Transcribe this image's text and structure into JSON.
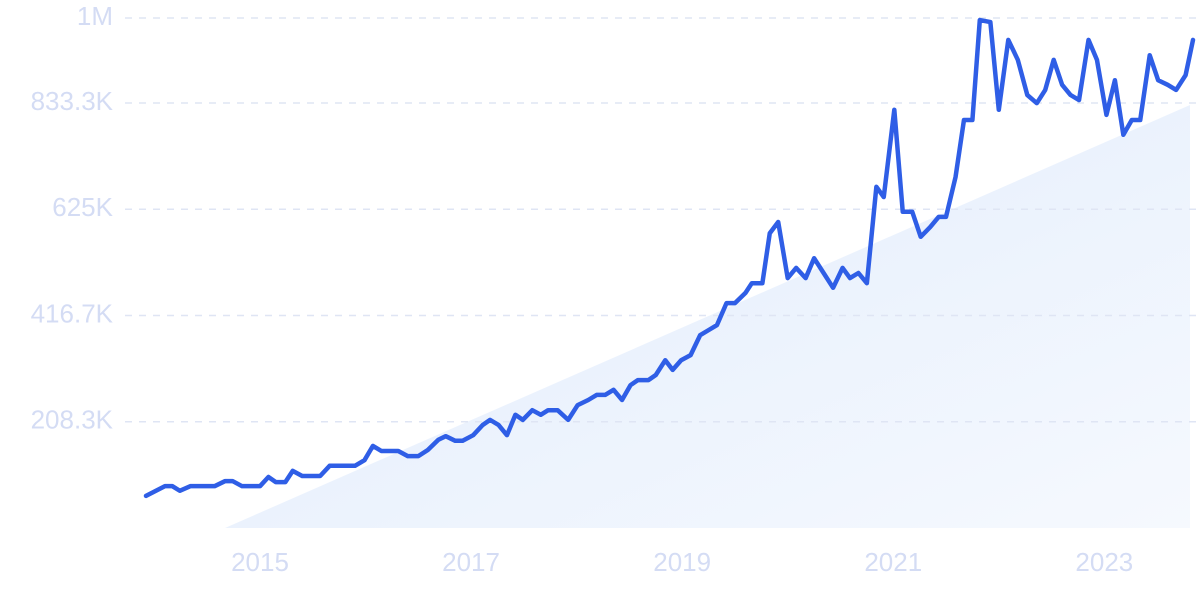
{
  "chart_data": {
    "type": "line",
    "x": [
      2013.92,
      2014.1,
      2014.17,
      2014.24,
      2014.34,
      2014.57,
      2014.67,
      2014.74,
      2014.83,
      2015.0,
      2015.08,
      2015.15,
      2015.24,
      2015.31,
      2015.4,
      2015.57,
      2015.66,
      2015.9,
      2015.99,
      2016.07,
      2016.15,
      2016.31,
      2016.4,
      2016.5,
      2016.59,
      2016.69,
      2016.76,
      2016.85,
      2016.92,
      2017.02,
      2017.11,
      2017.18,
      2017.26,
      2017.34,
      2017.42,
      2017.49,
      2017.58,
      2017.66,
      2017.73,
      2017.82,
      2017.92,
      2018.01,
      2018.11,
      2018.19,
      2018.27,
      2018.35,
      2018.43,
      2018.51,
      2018.58,
      2018.68,
      2018.75,
      2018.84,
      2018.91,
      2018.99,
      2019.08,
      2019.17,
      2019.25,
      2019.33,
      2019.42,
      2019.5,
      2019.6,
      2019.66,
      2019.76,
      2019.83,
      2019.91,
      2020.0,
      2020.08,
      2020.17,
      2020.25,
      2020.34,
      2020.43,
      2020.52,
      2020.59,
      2020.67,
      2020.75,
      2020.84,
      2020.91,
      2021.01,
      2021.09,
      2021.18,
      2021.26,
      2021.35,
      2021.43,
      2021.5,
      2021.59,
      2021.67,
      2021.75,
      2021.82,
      2021.92,
      2022.0,
      2022.09,
      2022.18,
      2022.27,
      2022.36,
      2022.44,
      2022.52,
      2022.6,
      2022.68,
      2022.76,
      2022.85,
      2022.93,
      2023.02,
      2023.1,
      2023.18,
      2023.26,
      2023.34,
      2023.43,
      2023.51,
      2023.6,
      2023.68,
      2023.77,
      2023.84
    ],
    "series": [
      {
        "color": "#2f5ee6",
        "values": [
          63000,
          82000,
          82000,
          73000,
          82000,
          82000,
          92000,
          92000,
          82000,
          82000,
          100000,
          90000,
          90000,
          112000,
          102000,
          102000,
          122000,
          122000,
          133000,
          161000,
          151000,
          151000,
          141000,
          141000,
          153000,
          173000,
          180000,
          171000,
          171000,
          182000,
          202000,
          212000,
          202000,
          182000,
          222000,
          212000,
          231000,
          222000,
          231000,
          231000,
          212000,
          241000,
          251000,
          261000,
          261000,
          271000,
          251000,
          280000,
          290000,
          290000,
          300000,
          329000,
          310000,
          329000,
          339000,
          378000,
          388000,
          398000,
          441000,
          441000,
          461000,
          480000,
          480000,
          578000,
          600000,
          490000,
          510000,
          490000,
          529000,
          500000,
          471000,
          510000,
          490000,
          500000,
          480000,
          669000,
          649000,
          820000,
          620000,
          620000,
          571000,
          590000,
          610000,
          610000,
          688000,
          800000,
          800000,
          996000,
          992000,
          820000,
          957000,
          918000,
          849000,
          833000,
          859000,
          918000,
          869000,
          849000,
          839000,
          957000,
          918000,
          810000,
          878000,
          771000,
          800000,
          800000,
          927000,
          878000,
          869000,
          859000,
          888000,
          957000
        ]
      }
    ],
    "xlim": [
      2013.92,
      2023.84
    ],
    "xticks": [
      2015,
      2017,
      2019,
      2021,
      2023
    ],
    "ylim": [
      0,
      1000000
    ],
    "yticks": [
      {
        "value": 208333,
        "label": "208.3K"
      },
      {
        "value": 416667,
        "label": "416.7K"
      },
      {
        "value": 625000,
        "label": "625K"
      },
      {
        "value": 833333,
        "label": "833.3K"
      },
      {
        "value": 1000000,
        "label": "1M"
      }
    ],
    "grid": true
  }
}
